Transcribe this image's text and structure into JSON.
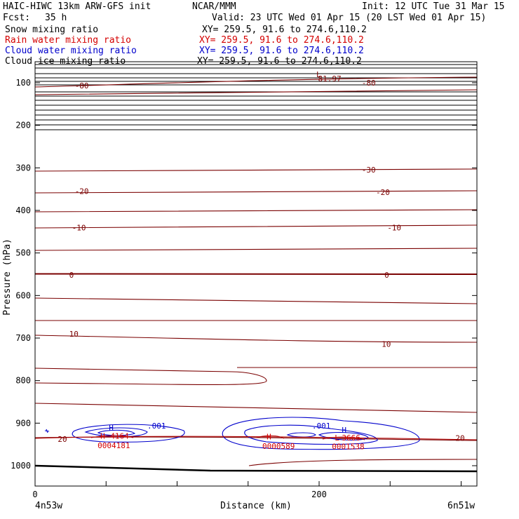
{
  "header": {
    "title_left": "HAIC-HIWC 13km ARW-GFS init",
    "org": "NCAR/MMM",
    "init": "Init: 12 UTC Tue 31 Mar 15",
    "fcst_label": "Fcst:",
    "fcst_value": "35 h",
    "valid": "Valid: 23 UTC Wed 01 Apr 15 (20 LST Wed 01 Apr 15)"
  },
  "fields": [
    {
      "name": "Snow mixing ratio",
      "xy": "XY= 259.5, 91.6 to 274.6,110.2",
      "color": "#000000"
    },
    {
      "name": "Rain water mixing ratio",
      "xy": "XY= 259.5, 91.6 to 274.6,110.2",
      "color": "#d40000"
    },
    {
      "name": "Cloud water mixing ratio",
      "xy": "XY= 259.5, 91.6 to 274.6,110.2",
      "color": "#0000cc"
    },
    {
      "name": "Cloud ice mixing ratio",
      "xy": "XY= 259.5, 91.6 to 274.6,110.2",
      "color": "#000000"
    }
  ],
  "chart_data": {
    "type": "cross-section contour",
    "ylabel": "Pressure (hPa)",
    "xlabel": "Distance (km)",
    "x_left_label": "4n53w",
    "x_right_label": "6n51w",
    "xlim": [
      0,
      310
    ],
    "ylim_pressure": [
      50,
      1050
    ],
    "yticks": [
      100,
      200,
      300,
      400,
      500,
      600,
      700,
      800,
      900,
      1000
    ],
    "xticks": [
      0,
      200
    ],
    "temperature_contour_labels": [
      {
        "text": "-80",
        "x": 28,
        "p": 107
      },
      {
        "text": "-80",
        "x": 230,
        "p": 100
      },
      {
        "text": "-81.97",
        "x": 196,
        "p": 90
      },
      {
        "text": "L",
        "x": 198,
        "p": 80
      },
      {
        "text": "-30",
        "x": 230,
        "p": 304
      },
      {
        "text": "-20",
        "x": 28,
        "p": 355
      },
      {
        "text": "-20",
        "x": 240,
        "p": 357
      },
      {
        "text": "-10",
        "x": 26,
        "p": 440
      },
      {
        "text": "-10",
        "x": 248,
        "p": 440
      },
      {
        "text": "0",
        "x": 24,
        "p": 552
      },
      {
        "text": "0",
        "x": 246,
        "p": 552
      },
      {
        "text": "10",
        "x": 24,
        "p": 690
      },
      {
        "text": "10",
        "x": 244,
        "p": 714
      },
      {
        "text": "20",
        "x": 16,
        "p": 937
      },
      {
        "text": "20",
        "x": 296,
        "p": 935
      }
    ],
    "cloud_water_labels": [
      {
        "text": "H",
        "x": 52,
        "p": 910
      },
      {
        "text": ".001",
        "x": 79,
        "p": 906
      },
      {
        "text": ".001",
        "x": 195,
        "p": 906
      },
      {
        "text": "H",
        "x": 216,
        "p": 916
      }
    ],
    "rain_water_labels": [
      {
        "text": "H",
        "x": 46,
        "p": 930
      },
      {
        "text": "4164",
        "x": 53,
        "p": 930
      },
      {
        "text": "0004181",
        "x": 44,
        "p": 952
      },
      {
        "text": "H",
        "x": 163,
        "p": 932
      },
      {
        "text": "0000589",
        "x": 160,
        "p": 954
      },
      {
        "text": "L",
        "x": 211,
        "p": 934
      },
      {
        "text": "3666",
        "x": 216,
        "p": 934
      },
      {
        "text": "0001538",
        "x": 209,
        "p": 955
      }
    ]
  }
}
